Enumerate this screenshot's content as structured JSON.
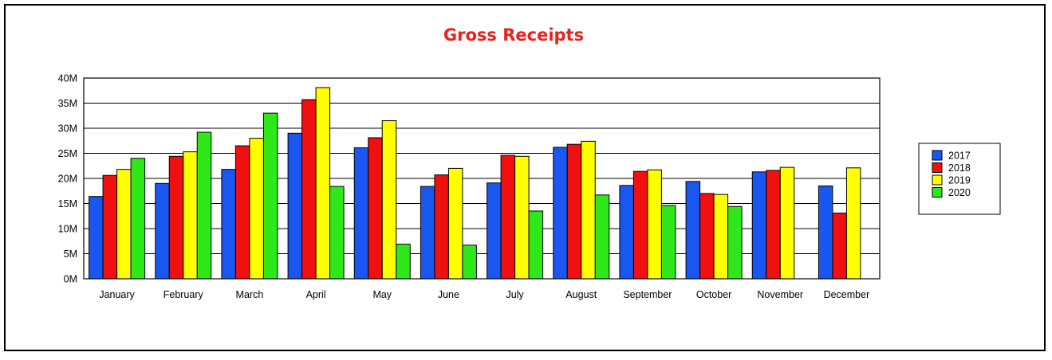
{
  "chart_data": {
    "type": "bar",
    "title": "Gross Receipts",
    "xlabel": "",
    "ylabel": "",
    "ylim": [
      0,
      40000000
    ],
    "y_ticks": [
      0,
      5000000,
      10000000,
      15000000,
      20000000,
      25000000,
      30000000,
      35000000,
      40000000
    ],
    "y_tick_labels": [
      "0M",
      "5M",
      "10M",
      "15M",
      "20M",
      "25M",
      "30M",
      "35M",
      "40M"
    ],
    "grid": true,
    "legend_position": "right",
    "categories": [
      "January",
      "February",
      "March",
      "April",
      "May",
      "June",
      "July",
      "August",
      "September",
      "October",
      "November",
      "December"
    ],
    "series": [
      {
        "name": "2017",
        "color": "#1a56f0",
        "values": [
          16400000,
          19000000,
          21800000,
          29000000,
          26100000,
          18400000,
          19100000,
          26200000,
          18600000,
          19400000,
          21300000,
          18500000
        ]
      },
      {
        "name": "2018",
        "color": "#f01010",
        "values": [
          20600000,
          24400000,
          26500000,
          35700000,
          28100000,
          20700000,
          24600000,
          26800000,
          21400000,
          17000000,
          21600000,
          13100000
        ]
      },
      {
        "name": "2019",
        "color": "#ffff00",
        "values": [
          21800000,
          25300000,
          28000000,
          38100000,
          31500000,
          22000000,
          24400000,
          27400000,
          21700000,
          16800000,
          22200000,
          22100000
        ]
      },
      {
        "name": "2020",
        "color": "#2ee81a",
        "values": [
          24000000,
          29200000,
          33000000,
          18400000,
          6900000,
          6700000,
          13500000,
          16700000,
          14600000,
          14400000,
          null,
          null
        ]
      }
    ]
  }
}
